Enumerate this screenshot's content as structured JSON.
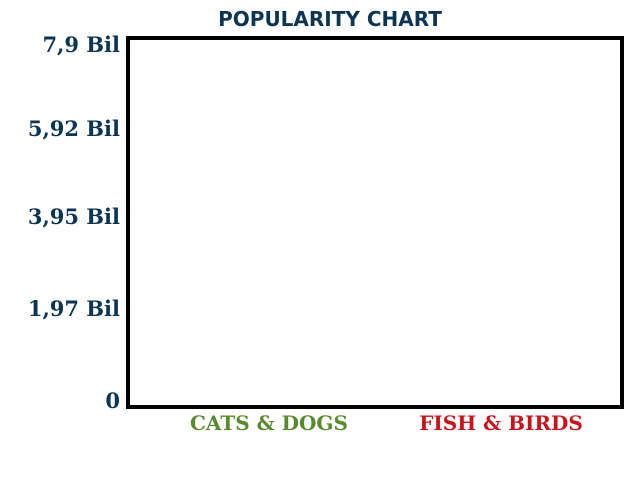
{
  "chart_data": {
    "type": "bar",
    "title": "POPULARITY CHART",
    "categories": [
      "CATS & DOGS",
      "FISH & BIRDS"
    ],
    "values": [
      null,
      null
    ],
    "yticks": [
      "0",
      "1,97 Bil",
      "3,95 Bil",
      "5,92 Bil",
      "7,9 Bil"
    ],
    "ylim": [
      0,
      7.9
    ],
    "grid": false,
    "colors": {
      "title": "#0b3552",
      "ytick": "#0b3552",
      "cats_dogs": "#5a8a2e",
      "fish_birds": "#c8131b",
      "frame": "#000000"
    }
  }
}
